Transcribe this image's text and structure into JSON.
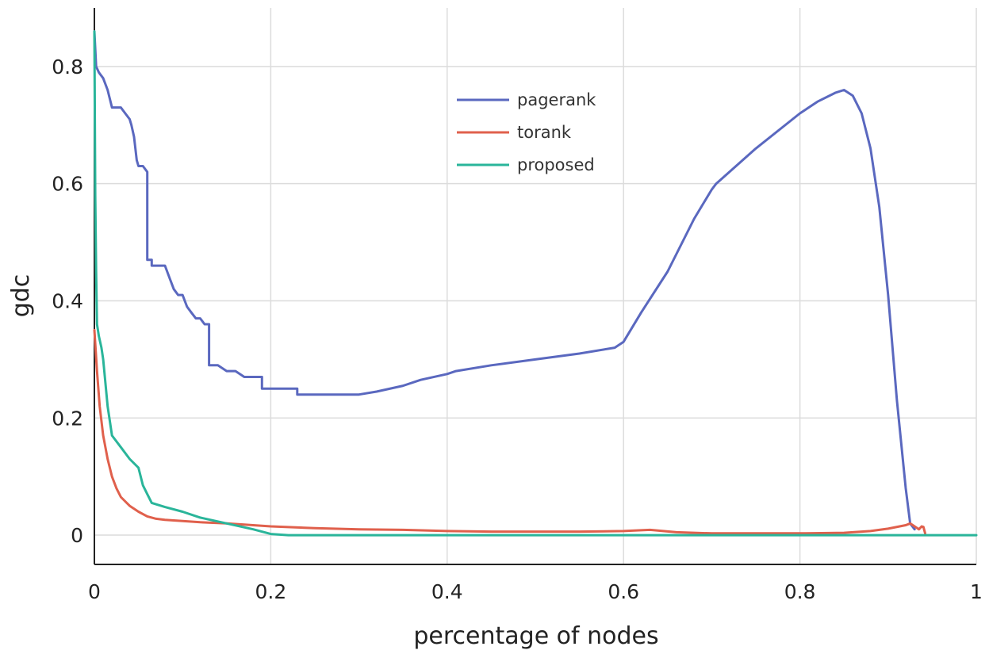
{
  "chart_data": {
    "type": "line",
    "title": "",
    "xlabel": "percentage of nodes",
    "ylabel": "gdc",
    "xlim": [
      0,
      1
    ],
    "ylim": [
      -0.05,
      0.9
    ],
    "xticks": [
      0,
      0.2,
      0.4,
      0.6,
      0.8,
      1
    ],
    "xtick_labels": [
      "0",
      "0.2",
      "0.4",
      "0.6",
      "0.8",
      "1"
    ],
    "yticks": [
      0,
      0.2,
      0.4,
      0.6,
      0.8
    ],
    "ytick_labels": [
      "0",
      "0.2",
      "0.4",
      "0.6",
      "0.8"
    ],
    "grid": true,
    "legend_position": "top-center",
    "series": [
      {
        "name": "pagerank",
        "color": "#5a68bf",
        "x": [
          0,
          0.002,
          0.005,
          0.01,
          0.015,
          0.02,
          0.03,
          0.035,
          0.04,
          0.042,
          0.045,
          0.048,
          0.05,
          0.055,
          0.06,
          0.06,
          0.065,
          0.065,
          0.07,
          0.08,
          0.085,
          0.09,
          0.095,
          0.1,
          0.105,
          0.105,
          0.11,
          0.115,
          0.12,
          0.125,
          0.13,
          0.13,
          0.14,
          0.15,
          0.16,
          0.17,
          0.18,
          0.19,
          0.19,
          0.2,
          0.21,
          0.23,
          0.23,
          0.25,
          0.28,
          0.3,
          0.32,
          0.35,
          0.37,
          0.4,
          0.41,
          0.45,
          0.5,
          0.55,
          0.59,
          0.6,
          0.62,
          0.65,
          0.68,
          0.7,
          0.705,
          0.75,
          0.8,
          0.82,
          0.84,
          0.85,
          0.86,
          0.87,
          0.88,
          0.89,
          0.9,
          0.91,
          0.92,
          0.925,
          0.93
        ],
        "y": [
          0.86,
          0.8,
          0.79,
          0.78,
          0.76,
          0.73,
          0.73,
          0.72,
          0.71,
          0.7,
          0.68,
          0.64,
          0.63,
          0.63,
          0.62,
          0.47,
          0.47,
          0.46,
          0.46,
          0.46,
          0.44,
          0.42,
          0.41,
          0.41,
          0.39,
          0.39,
          0.38,
          0.37,
          0.37,
          0.36,
          0.36,
          0.29,
          0.29,
          0.28,
          0.28,
          0.27,
          0.27,
          0.27,
          0.25,
          0.25,
          0.25,
          0.25,
          0.24,
          0.24,
          0.24,
          0.24,
          0.245,
          0.255,
          0.265,
          0.275,
          0.28,
          0.29,
          0.3,
          0.31,
          0.32,
          0.33,
          0.38,
          0.45,
          0.54,
          0.59,
          0.6,
          0.66,
          0.72,
          0.74,
          0.755,
          0.76,
          0.75,
          0.72,
          0.66,
          0.56,
          0.41,
          0.23,
          0.08,
          0.02,
          0.01
        ]
      },
      {
        "name": "torank",
        "color": "#e0604c",
        "x": [
          0,
          0.003,
          0.006,
          0.01,
          0.015,
          0.02,
          0.025,
          0.03,
          0.04,
          0.05,
          0.06,
          0.07,
          0.08,
          0.1,
          0.12,
          0.15,
          0.2,
          0.25,
          0.3,
          0.35,
          0.4,
          0.45,
          0.5,
          0.55,
          0.6,
          0.63,
          0.66,
          0.7,
          0.75,
          0.8,
          0.85,
          0.88,
          0.9,
          0.92,
          0.925,
          0.93,
          0.935,
          0.938,
          0.94,
          0.942
        ],
        "y": [
          0.35,
          0.28,
          0.22,
          0.17,
          0.13,
          0.1,
          0.08,
          0.065,
          0.05,
          0.04,
          0.032,
          0.028,
          0.026,
          0.024,
          0.022,
          0.02,
          0.015,
          0.012,
          0.01,
          0.009,
          0.007,
          0.006,
          0.006,
          0.006,
          0.007,
          0.009,
          0.005,
          0.003,
          0.003,
          0.003,
          0.004,
          0.007,
          0.011,
          0.017,
          0.02,
          0.015,
          0.01,
          0.015,
          0.014,
          0.003
        ]
      },
      {
        "name": "proposed",
        "color": "#2ab59a",
        "x": [
          0,
          0.001,
          0.002,
          0.003,
          0.005,
          0.008,
          0.01,
          0.015,
          0.02,
          0.03,
          0.04,
          0.05,
          0.055,
          0.06,
          0.065,
          0.08,
          0.1,
          0.12,
          0.15,
          0.18,
          0.2,
          0.22,
          0.25,
          0.3,
          0.4,
          0.5,
          0.6,
          0.7,
          0.8,
          0.9,
          0.93,
          1.0
        ],
        "y": [
          0.86,
          0.58,
          0.45,
          0.36,
          0.34,
          0.32,
          0.3,
          0.22,
          0.17,
          0.15,
          0.13,
          0.115,
          0.085,
          0.07,
          0.055,
          0.048,
          0.04,
          0.03,
          0.02,
          0.01,
          0.002,
          0.0,
          0.0,
          0.0,
          0.0,
          0.0,
          0.0,
          0.0,
          0.0,
          0.0,
          0.0,
          0.0
        ]
      }
    ]
  }
}
